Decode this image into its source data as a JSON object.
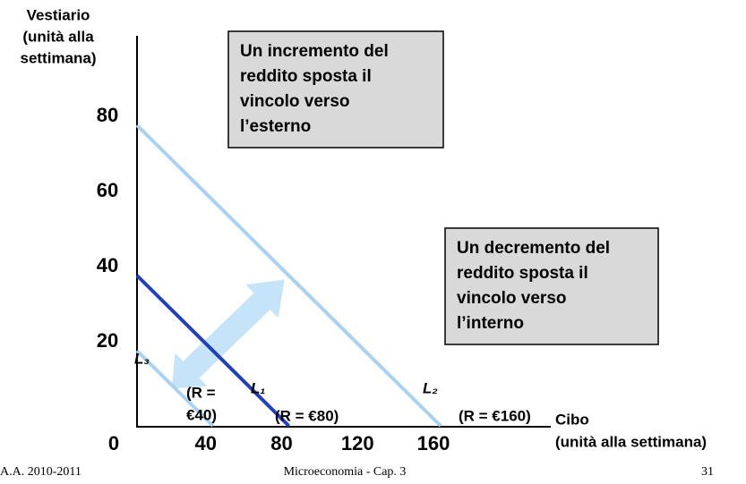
{
  "chart_data": {
    "type": "line",
    "y_label": [
      "Vestiario",
      "(unità alla",
      "settimana)"
    ],
    "x_label": [
      "Cibo",
      "(unità alla settimana)"
    ],
    "xlim": [
      0,
      160
    ],
    "ylim": [
      0,
      80
    ],
    "xticks": [
      40,
      80,
      120,
      160
    ],
    "yticks": [
      0,
      20,
      40,
      60,
      80
    ],
    "series": [
      {
        "name": "L₁",
        "color": "#1f3fbf",
        "x": [
          0,
          80
        ],
        "values": [
          40,
          0
        ],
        "label": [
          "(R = €80)"
        ]
      },
      {
        "name": "L₂",
        "color": "#a9d1f2",
        "x": [
          0,
          160
        ],
        "values": [
          80,
          0
        ],
        "label": [
          "(R = €160)"
        ]
      },
      {
        "name": "L₃",
        "color": "#a9d1f2",
        "x": [
          0,
          40
        ],
        "values": [
          20,
          0
        ],
        "label": [
          "(R =",
          "€40)"
        ]
      }
    ],
    "annotations": [
      [
        "Un incremento del",
        "reddito sposta il",
        "vincolo verso",
        "l’esterno"
      ],
      [
        "Un decremento del",
        "reddito sposta il",
        "vincolo verso",
        "l’interno"
      ]
    ]
  },
  "footer": {
    "left": "A.A. 2010-2011",
    "center": "Microeconomia - Cap. 3",
    "right": "31"
  }
}
